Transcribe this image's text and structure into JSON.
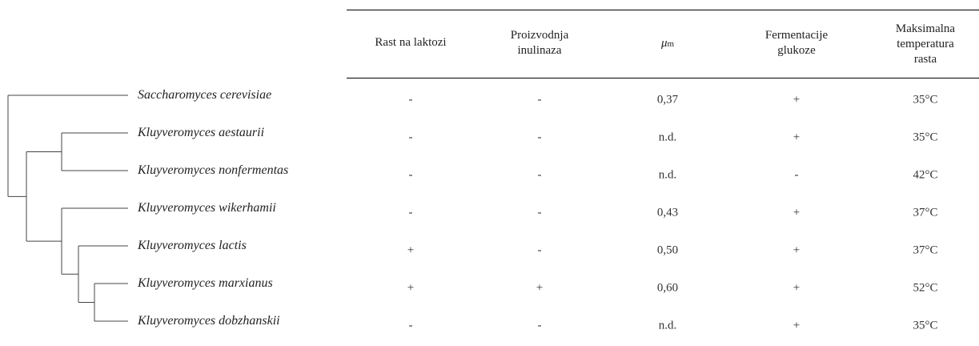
{
  "table": {
    "headers": [
      {
        "lines": [
          "Rast na laktozi"
        ]
      },
      {
        "lines": [
          "Proizvodnja",
          "inulinaza"
        ]
      },
      {
        "symbol": "μ",
        "sub": "m"
      },
      {
        "lines": [
          "Fermentacije",
          "glukoze"
        ]
      },
      {
        "lines": [
          "Maksimalna",
          "temperatura",
          "rasta"
        ]
      }
    ],
    "rows": [
      {
        "species": "Saccharomyces cerevisiae",
        "values": [
          "-",
          "-",
          "0,37",
          "+",
          "35°C"
        ]
      },
      {
        "species": "Kluyveromyces aestaurii",
        "values": [
          "-",
          "-",
          "n.d.",
          "+",
          "35°C"
        ]
      },
      {
        "species": "Kluyveromyces nonfermentas",
        "values": [
          "-",
          "-",
          "n.d.",
          "-",
          "42°C"
        ]
      },
      {
        "species": "Kluyveromyces wikerhamii",
        "values": [
          "-",
          "-",
          "0,43",
          "+",
          "37°C"
        ]
      },
      {
        "species": "Kluyveromyces lactis",
        "values": [
          "+",
          "-",
          "0,50",
          "+",
          "37°C"
        ]
      },
      {
        "species": "Kluyveromyces marxianus",
        "values": [
          "+",
          "+",
          "0,60",
          "+",
          "52°C"
        ]
      },
      {
        "species": "Kluyveromyces dobzhanskii",
        "values": [
          "-",
          "-",
          "n.d.",
          "+",
          "35°C"
        ]
      }
    ]
  },
  "tree": {
    "topology": [
      "Saccharomyces cerevisiae",
      [
        [
          "Kluyveromyces aestaurii",
          "Kluyveromyces nonfermentas"
        ],
        [
          "Kluyveromyces wikerhamii",
          [
            "Kluyveromyces lactis",
            [
              "Kluyveromyces marxianus",
              "Kluyveromyces dobzhanskii"
            ]
          ]
        ]
      ]
    ]
  }
}
